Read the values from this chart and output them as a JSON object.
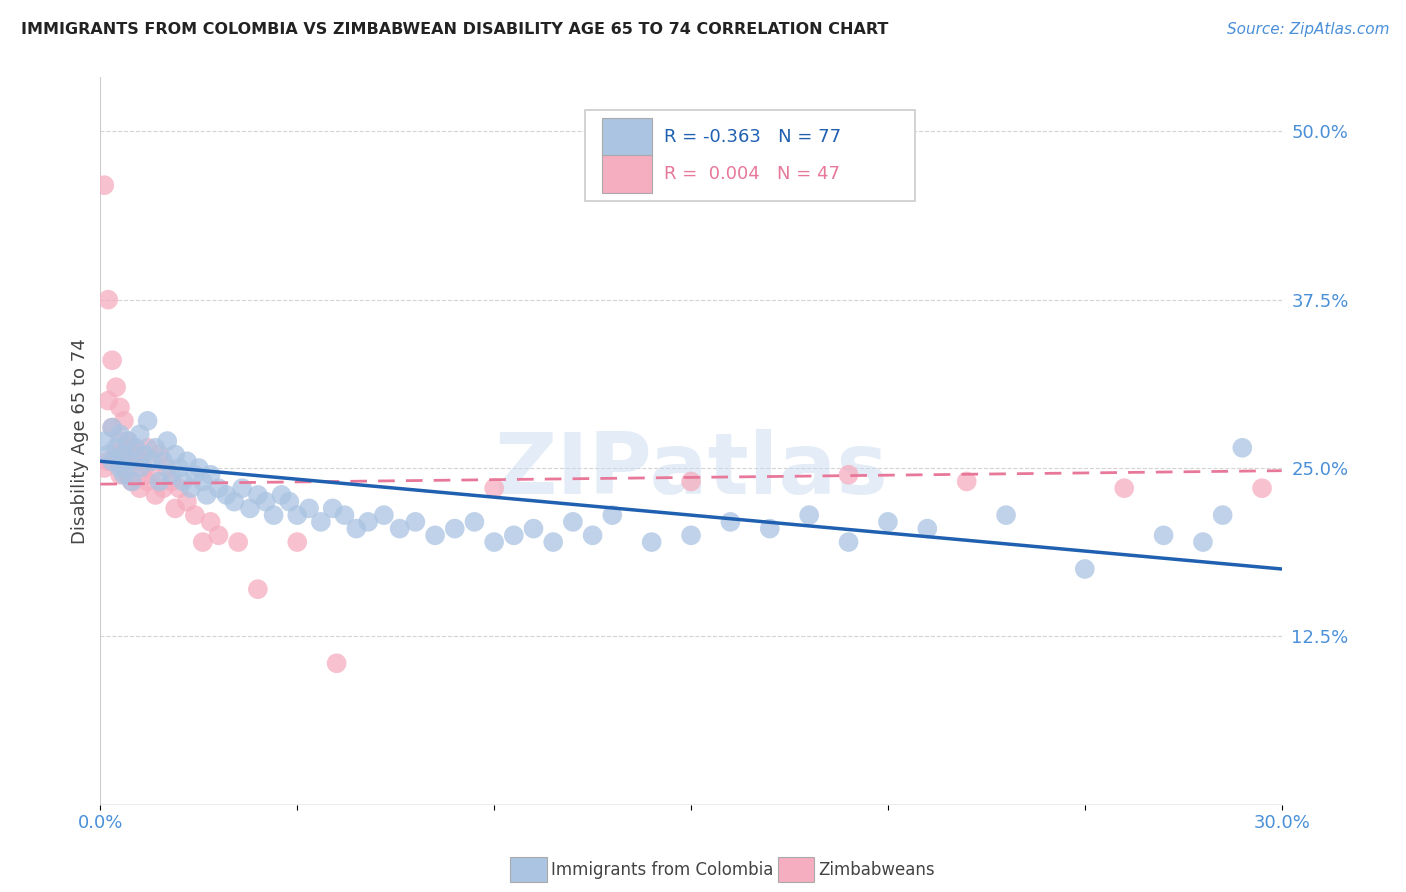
{
  "title": "IMMIGRANTS FROM COLOMBIA VS ZIMBABWEAN DISABILITY AGE 65 TO 74 CORRELATION CHART",
  "source": "Source: ZipAtlas.com",
  "ylabel": "Disability Age 65 to 74",
  "xlim": [
    0.0,
    0.3
  ],
  "ylim": [
    0.0,
    0.54
  ],
  "xticks": [
    0.0,
    0.05,
    0.1,
    0.15,
    0.2,
    0.25,
    0.3
  ],
  "xticklabels": [
    "0.0%",
    "",
    "",
    "",
    "",
    "",
    "30.0%"
  ],
  "yticks_right": [
    0.125,
    0.25,
    0.375,
    0.5
  ],
  "yticklabels_right": [
    "12.5%",
    "25.0%",
    "37.5%",
    "50.0%"
  ],
  "colombia_R": -0.363,
  "colombia_N": 77,
  "zimbabwe_R": 0.004,
  "zimbabwe_N": 47,
  "colombia_color": "#aac4e2",
  "zimbabwe_color": "#f5adc0",
  "colombia_line_color": "#2060b0",
  "zimbabwe_line_color": "#e8789a",
  "watermark": "ZIPatlas",
  "colombia_x": [
    0.001,
    0.002,
    0.003,
    0.003,
    0.004,
    0.005,
    0.005,
    0.006,
    0.006,
    0.007,
    0.007,
    0.008,
    0.009,
    0.01,
    0.01,
    0.011,
    0.012,
    0.013,
    0.014,
    0.015,
    0.016,
    0.017,
    0.018,
    0.019,
    0.02,
    0.021,
    0.022,
    0.023,
    0.024,
    0.025,
    0.026,
    0.027,
    0.028,
    0.03,
    0.032,
    0.034,
    0.036,
    0.038,
    0.04,
    0.042,
    0.044,
    0.046,
    0.048,
    0.05,
    0.053,
    0.056,
    0.059,
    0.062,
    0.065,
    0.068,
    0.072,
    0.076,
    0.08,
    0.085,
    0.09,
    0.095,
    0.1,
    0.105,
    0.11,
    0.115,
    0.12,
    0.125,
    0.13,
    0.14,
    0.15,
    0.16,
    0.17,
    0.18,
    0.19,
    0.2,
    0.21,
    0.23,
    0.25,
    0.27,
    0.28,
    0.285,
    0.29
  ],
  "colombia_y": [
    0.27,
    0.26,
    0.255,
    0.28,
    0.265,
    0.25,
    0.275,
    0.26,
    0.245,
    0.255,
    0.27,
    0.24,
    0.265,
    0.25,
    0.275,
    0.26,
    0.285,
    0.255,
    0.265,
    0.24,
    0.255,
    0.27,
    0.245,
    0.26,
    0.25,
    0.24,
    0.255,
    0.235,
    0.245,
    0.25,
    0.24,
    0.23,
    0.245,
    0.235,
    0.23,
    0.225,
    0.235,
    0.22,
    0.23,
    0.225,
    0.215,
    0.23,
    0.225,
    0.215,
    0.22,
    0.21,
    0.22,
    0.215,
    0.205,
    0.21,
    0.215,
    0.205,
    0.21,
    0.2,
    0.205,
    0.21,
    0.195,
    0.2,
    0.205,
    0.195,
    0.21,
    0.2,
    0.215,
    0.195,
    0.2,
    0.21,
    0.205,
    0.215,
    0.195,
    0.21,
    0.205,
    0.215,
    0.175,
    0.2,
    0.195,
    0.215,
    0.265
  ],
  "zimbabwe_x": [
    0.001,
    0.001,
    0.002,
    0.002,
    0.002,
    0.003,
    0.003,
    0.004,
    0.004,
    0.005,
    0.005,
    0.005,
    0.006,
    0.006,
    0.007,
    0.007,
    0.008,
    0.008,
    0.009,
    0.01,
    0.01,
    0.011,
    0.012,
    0.012,
    0.013,
    0.014,
    0.015,
    0.016,
    0.017,
    0.018,
    0.019,
    0.02,
    0.022,
    0.024,
    0.026,
    0.028,
    0.03,
    0.035,
    0.04,
    0.05,
    0.06,
    0.1,
    0.15,
    0.19,
    0.22,
    0.26,
    0.295
  ],
  "zimbabwe_y": [
    0.46,
    0.25,
    0.375,
    0.3,
    0.255,
    0.33,
    0.28,
    0.31,
    0.26,
    0.295,
    0.27,
    0.245,
    0.285,
    0.255,
    0.27,
    0.245,
    0.265,
    0.24,
    0.26,
    0.255,
    0.235,
    0.25,
    0.24,
    0.265,
    0.245,
    0.23,
    0.26,
    0.235,
    0.25,
    0.24,
    0.22,
    0.235,
    0.225,
    0.215,
    0.195,
    0.21,
    0.2,
    0.195,
    0.16,
    0.195,
    0.105,
    0.235,
    0.24,
    0.245,
    0.24,
    0.235,
    0.235
  ]
}
